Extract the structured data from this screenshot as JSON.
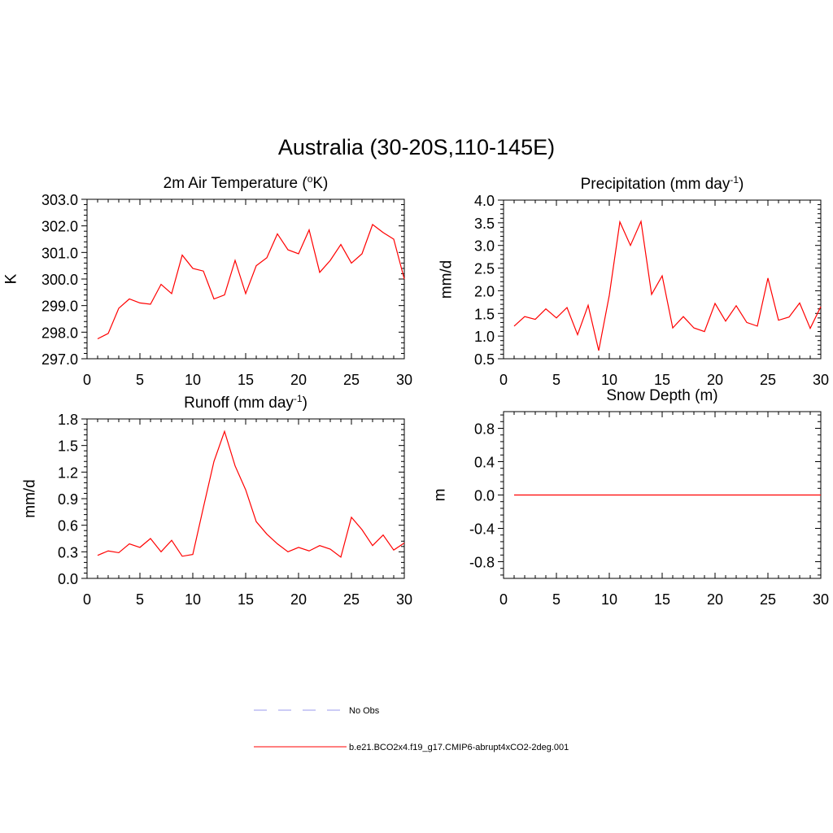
{
  "title": "Australia (30-20S,110-145E)",
  "colors": {
    "series": "#ff0000",
    "obs": "#9999ee",
    "axis": "#000000"
  },
  "legend": {
    "items": [
      {
        "label": "No Obs",
        "style": "dashed",
        "color": "#9999ee"
      },
      {
        "label": "b.e21.BCO2x4.f19_g17.CMIP6-abrupt4xCO2-2deg.001",
        "style": "solid",
        "color": "#ff0000"
      }
    ]
  },
  "chart_data": [
    {
      "type": "line",
      "title": "2m Air Temperature (",
      "title_sup": "o",
      "title_suffix": "K)",
      "ylabel": "K",
      "xlim": [
        0,
        30
      ],
      "ylim": [
        297,
        303
      ],
      "yticks": [
        "297.0",
        "298.0",
        "299.0",
        "300.0",
        "301.0",
        "302.0",
        "303.0"
      ],
      "xticks": [
        "0",
        "5",
        "10",
        "15",
        "20",
        "25",
        "30"
      ],
      "x": [
        1,
        2,
        3,
        4,
        5,
        6,
        7,
        8,
        9,
        10,
        11,
        12,
        13,
        14,
        15,
        16,
        17,
        18,
        19,
        20,
        21,
        22,
        23,
        24,
        25,
        26,
        27,
        28,
        29,
        30
      ],
      "values": [
        297.75,
        297.95,
        298.9,
        299.25,
        299.1,
        299.05,
        299.8,
        299.45,
        300.9,
        300.4,
        300.3,
        299.25,
        299.4,
        300.7,
        299.45,
        300.5,
        300.8,
        301.7,
        301.1,
        300.95,
        301.85,
        300.25,
        300.7,
        301.3,
        300.6,
        300.95,
        302.05,
        301.75,
        301.5,
        300.0
      ]
    },
    {
      "type": "line",
      "title": "Precipitation (mm day",
      "title_sup": "-1",
      "title_suffix": ")",
      "ylabel": "mm/d",
      "xlim": [
        0,
        30
      ],
      "ylim": [
        0.5,
        4.0
      ],
      "yticks": [
        "0.5",
        "1.0",
        "1.5",
        "2.0",
        "2.5",
        "3.0",
        "3.5",
        "4.0"
      ],
      "xticks": [
        "0",
        "5",
        "10",
        "15",
        "20",
        "25",
        "30"
      ],
      "x": [
        1,
        2,
        3,
        4,
        5,
        6,
        7,
        8,
        9,
        10,
        11,
        12,
        13,
        14,
        15,
        16,
        17,
        18,
        19,
        20,
        21,
        22,
        23,
        24,
        25,
        26,
        27,
        28,
        29,
        30
      ],
      "values": [
        1.22,
        1.43,
        1.37,
        1.6,
        1.4,
        1.63,
        1.03,
        1.68,
        0.68,
        1.9,
        3.52,
        3.0,
        3.53,
        1.92,
        2.33,
        1.18,
        1.43,
        1.18,
        1.1,
        1.72,
        1.33,
        1.67,
        1.3,
        1.22,
        2.28,
        1.35,
        1.42,
        1.73,
        1.17,
        1.65
      ]
    },
    {
      "type": "line",
      "title": "Runoff (mm day",
      "title_sup": "-1",
      "title_suffix": ")",
      "ylabel": "mm/d",
      "xlim": [
        0,
        30
      ],
      "ylim": [
        0.0,
        1.8
      ],
      "yticks": [
        "0.0",
        "0.3",
        "0.6",
        "0.9",
        "1.2",
        "1.5",
        "1.8"
      ],
      "xticks": [
        "0",
        "5",
        "10",
        "15",
        "20",
        "25",
        "30"
      ],
      "x": [
        1,
        2,
        3,
        4,
        5,
        6,
        7,
        8,
        9,
        10,
        11,
        12,
        13,
        14,
        15,
        16,
        17,
        18,
        19,
        20,
        21,
        22,
        23,
        24,
        25,
        26,
        27,
        28,
        29,
        30
      ],
      "values": [
        0.26,
        0.31,
        0.29,
        0.39,
        0.35,
        0.45,
        0.3,
        0.43,
        0.25,
        0.27,
        0.8,
        1.32,
        1.66,
        1.27,
        1.0,
        0.64,
        0.5,
        0.39,
        0.3,
        0.35,
        0.31,
        0.37,
        0.33,
        0.24,
        0.69,
        0.55,
        0.37,
        0.49,
        0.32,
        0.4
      ]
    },
    {
      "type": "line",
      "title": "Snow Depth (m)",
      "title_sup": "",
      "title_suffix": "",
      "ylabel": "m",
      "xlim": [
        0,
        30
      ],
      "ylim": [
        -1.0,
        1.0
      ],
      "yticks": [
        "-0.8",
        "-0.4",
        "0.0",
        "0.4",
        "0.8"
      ],
      "xticks": [
        "0",
        "5",
        "10",
        "15",
        "20",
        "25",
        "30"
      ],
      "x": [
        1,
        2,
        3,
        4,
        5,
        6,
        7,
        8,
        9,
        10,
        11,
        12,
        13,
        14,
        15,
        16,
        17,
        18,
        19,
        20,
        21,
        22,
        23,
        24,
        25,
        26,
        27,
        28,
        29,
        30
      ],
      "values": [
        0,
        0,
        0,
        0,
        0,
        0,
        0,
        0,
        0,
        0,
        0,
        0,
        0,
        0,
        0,
        0,
        0,
        0,
        0,
        0,
        0,
        0,
        0,
        0,
        0,
        0,
        0,
        0,
        0,
        0
      ]
    }
  ]
}
